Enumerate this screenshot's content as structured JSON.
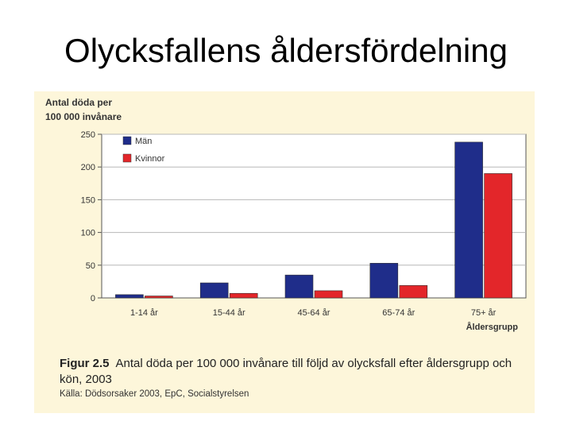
{
  "slide": {
    "title": "Olycksfallens åldersfördelning"
  },
  "chart_data": {
    "type": "bar",
    "ylabel_line1": "Antal döda per",
    "ylabel_line2": "100 000 invånare",
    "xlabel": "Åldersgrupp",
    "categories": [
      "1-14 år",
      "15-44 år",
      "45-64 år",
      "65-74 år",
      "75+ år"
    ],
    "series": [
      {
        "name": "Män",
        "color": "#1f2d8a",
        "values": [
          5,
          23,
          35,
          53,
          238
        ]
      },
      {
        "name": "Kvinnor",
        "color": "#e3262a",
        "values": [
          3,
          7,
          11,
          19,
          190
        ]
      }
    ],
    "ylim": [
      0,
      250
    ],
    "yticks": [
      0,
      50,
      100,
      150,
      200,
      250
    ],
    "grid": true,
    "legend": "top-left"
  },
  "caption": {
    "figure_label": "Figur 2.5",
    "text": "Antal döda per 100 000 invånare till följd av olycksfall efter åldersgrupp och kön, 2003",
    "source": "Källa: Dödsorsaker 2003, EpC, Socialstyrelsen"
  }
}
